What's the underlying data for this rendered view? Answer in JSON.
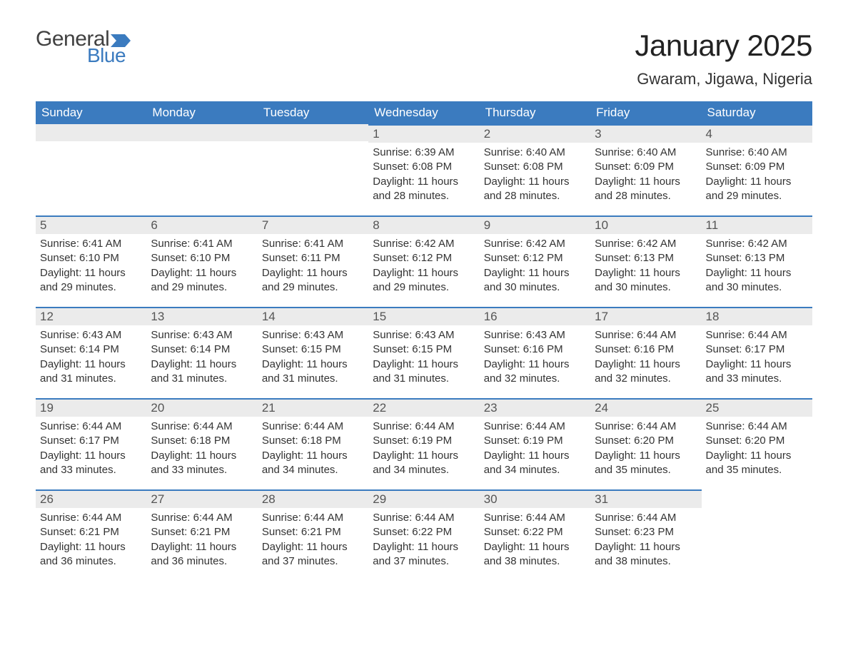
{
  "logo": {
    "general": "General",
    "blue": "Blue"
  },
  "title": {
    "month_year": "January 2025",
    "location": "Gwaram, Jigawa, Nigeria"
  },
  "colors": {
    "header_bg": "#3b7bbf",
    "header_text": "#ffffff",
    "daynum_bg": "#ebebeb",
    "daynum_border": "#3b7bbf",
    "body_text": "#333333",
    "logo_general": "#414141",
    "logo_blue": "#3b7bbf"
  },
  "weekdays": [
    "Sunday",
    "Monday",
    "Tuesday",
    "Wednesday",
    "Thursday",
    "Friday",
    "Saturday"
  ],
  "weeks": [
    [
      null,
      null,
      null,
      {
        "n": "1",
        "sunrise": "6:39 AM",
        "sunset": "6:08 PM",
        "daylight": "11 hours and 28 minutes."
      },
      {
        "n": "2",
        "sunrise": "6:40 AM",
        "sunset": "6:08 PM",
        "daylight": "11 hours and 28 minutes."
      },
      {
        "n": "3",
        "sunrise": "6:40 AM",
        "sunset": "6:09 PM",
        "daylight": "11 hours and 28 minutes."
      },
      {
        "n": "4",
        "sunrise": "6:40 AM",
        "sunset": "6:09 PM",
        "daylight": "11 hours and 29 minutes."
      }
    ],
    [
      {
        "n": "5",
        "sunrise": "6:41 AM",
        "sunset": "6:10 PM",
        "daylight": "11 hours and 29 minutes."
      },
      {
        "n": "6",
        "sunrise": "6:41 AM",
        "sunset": "6:10 PM",
        "daylight": "11 hours and 29 minutes."
      },
      {
        "n": "7",
        "sunrise": "6:41 AM",
        "sunset": "6:11 PM",
        "daylight": "11 hours and 29 minutes."
      },
      {
        "n": "8",
        "sunrise": "6:42 AM",
        "sunset": "6:12 PM",
        "daylight": "11 hours and 29 minutes."
      },
      {
        "n": "9",
        "sunrise": "6:42 AM",
        "sunset": "6:12 PM",
        "daylight": "11 hours and 30 minutes."
      },
      {
        "n": "10",
        "sunrise": "6:42 AM",
        "sunset": "6:13 PM",
        "daylight": "11 hours and 30 minutes."
      },
      {
        "n": "11",
        "sunrise": "6:42 AM",
        "sunset": "6:13 PM",
        "daylight": "11 hours and 30 minutes."
      }
    ],
    [
      {
        "n": "12",
        "sunrise": "6:43 AM",
        "sunset": "6:14 PM",
        "daylight": "11 hours and 31 minutes."
      },
      {
        "n": "13",
        "sunrise": "6:43 AM",
        "sunset": "6:14 PM",
        "daylight": "11 hours and 31 minutes."
      },
      {
        "n": "14",
        "sunrise": "6:43 AM",
        "sunset": "6:15 PM",
        "daylight": "11 hours and 31 minutes."
      },
      {
        "n": "15",
        "sunrise": "6:43 AM",
        "sunset": "6:15 PM",
        "daylight": "11 hours and 31 minutes."
      },
      {
        "n": "16",
        "sunrise": "6:43 AM",
        "sunset": "6:16 PM",
        "daylight": "11 hours and 32 minutes."
      },
      {
        "n": "17",
        "sunrise": "6:44 AM",
        "sunset": "6:16 PM",
        "daylight": "11 hours and 32 minutes."
      },
      {
        "n": "18",
        "sunrise": "6:44 AM",
        "sunset": "6:17 PM",
        "daylight": "11 hours and 33 minutes."
      }
    ],
    [
      {
        "n": "19",
        "sunrise": "6:44 AM",
        "sunset": "6:17 PM",
        "daylight": "11 hours and 33 minutes."
      },
      {
        "n": "20",
        "sunrise": "6:44 AM",
        "sunset": "6:18 PM",
        "daylight": "11 hours and 33 minutes."
      },
      {
        "n": "21",
        "sunrise": "6:44 AM",
        "sunset": "6:18 PM",
        "daylight": "11 hours and 34 minutes."
      },
      {
        "n": "22",
        "sunrise": "6:44 AM",
        "sunset": "6:19 PM",
        "daylight": "11 hours and 34 minutes."
      },
      {
        "n": "23",
        "sunrise": "6:44 AM",
        "sunset": "6:19 PM",
        "daylight": "11 hours and 34 minutes."
      },
      {
        "n": "24",
        "sunrise": "6:44 AM",
        "sunset": "6:20 PM",
        "daylight": "11 hours and 35 minutes."
      },
      {
        "n": "25",
        "sunrise": "6:44 AM",
        "sunset": "6:20 PM",
        "daylight": "11 hours and 35 minutes."
      }
    ],
    [
      {
        "n": "26",
        "sunrise": "6:44 AM",
        "sunset": "6:21 PM",
        "daylight": "11 hours and 36 minutes."
      },
      {
        "n": "27",
        "sunrise": "6:44 AM",
        "sunset": "6:21 PM",
        "daylight": "11 hours and 36 minutes."
      },
      {
        "n": "28",
        "sunrise": "6:44 AM",
        "sunset": "6:21 PM",
        "daylight": "11 hours and 37 minutes."
      },
      {
        "n": "29",
        "sunrise": "6:44 AM",
        "sunset": "6:22 PM",
        "daylight": "11 hours and 37 minutes."
      },
      {
        "n": "30",
        "sunrise": "6:44 AM",
        "sunset": "6:22 PM",
        "daylight": "11 hours and 38 minutes."
      },
      {
        "n": "31",
        "sunrise": "6:44 AM",
        "sunset": "6:23 PM",
        "daylight": "11 hours and 38 minutes."
      },
      null
    ]
  ],
  "labels": {
    "sunrise": "Sunrise: ",
    "sunset": "Sunset: ",
    "daylight": "Daylight: "
  }
}
